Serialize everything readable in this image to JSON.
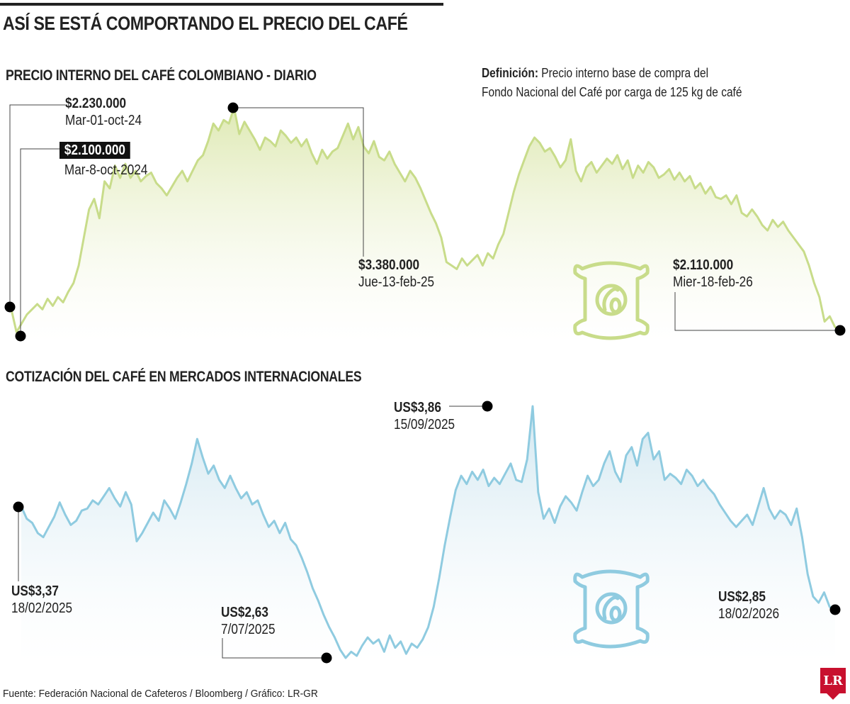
{
  "title": "ASÍ SE ESTÁ COMPORTANDO EL PRECIO DEL CAFÉ",
  "definition": {
    "label": "Definición:",
    "line1": "Precio interno base de compra del",
    "line2": "Fondo Nacional del Café por carga de 125 kg de café"
  },
  "source": "Fuente: Federación Nacional de Cafeteros / Bloomberg / Gráfico: LR-GR",
  "logo": "LR",
  "colors": {
    "domestic_line": "#c8dc8a",
    "international_line": "#8fcbe0",
    "logo": "#c8102e"
  },
  "icons": [
    "coffee-sack-icon"
  ],
  "chart_data": [
    {
      "type": "area",
      "title": "PRECIO INTERNO DEL CAFÉ COLOMBIANO - DIARIO",
      "annotations": [
        {
          "value": "$2.230.000",
          "date": "Mar-01-oct-24"
        },
        {
          "value": "$2.100.000",
          "date": "Mar-8-oct-2024"
        },
        {
          "value": "$3.380.000",
          "date": "Jue-13-feb-25"
        },
        {
          "value": "$2.110.000",
          "date": "Mier-18-feb-26"
        }
      ],
      "y": [
        2230000,
        2100000,
        2150000,
        2200000,
        2230000,
        2260000,
        2230000,
        2290000,
        2250000,
        2300000,
        2270000,
        2330000,
        2380000,
        2480000,
        2640000,
        2800000,
        2860000,
        2750000,
        2960000,
        2920000,
        3050000,
        2980000,
        3060000,
        2980000,
        3020000,
        2960000,
        2990000,
        3010000,
        2950000,
        2920000,
        2880000,
        2930000,
        2980000,
        3020000,
        2960000,
        3020000,
        3080000,
        3110000,
        3190000,
        3290000,
        3250000,
        3310000,
        3290000,
        3380000,
        3230000,
        3300000,
        3250000,
        3200000,
        3140000,
        3210000,
        3190000,
        3160000,
        3250000,
        3220000,
        3180000,
        3210000,
        3160000,
        3200000,
        3120000,
        3060000,
        3140000,
        3090000,
        3130000,
        3150000,
        3220000,
        3290000,
        3200000,
        3270000,
        3160000,
        3120000,
        3190000,
        3100000,
        3080000,
        3130000,
        3060000,
        3010000,
        2960000,
        3020000,
        2980000,
        2920000,
        2850000,
        2780000,
        2720000,
        2640000,
        2500000,
        2480000,
        2460000,
        2520000,
        2480000,
        2510000,
        2540000,
        2480000,
        2550000,
        2520000,
        2600000,
        2660000,
        2780000,
        2900000,
        3000000,
        3080000,
        3160000,
        3210000,
        3180000,
        3130000,
        3150000,
        3100000,
        3040000,
        3080000,
        3200000,
        3020000,
        2960000,
        3040000,
        3070000,
        3010000,
        3050000,
        3090000,
        3060000,
        3110000,
        3030000,
        3080000,
        2980000,
        3050000,
        3010000,
        3070000,
        3040000,
        2980000,
        3000000,
        3030000,
        2970000,
        3010000,
        2960000,
        2990000,
        2920000,
        2950000,
        2890000,
        2930000,
        2870000,
        2860000,
        2880000,
        2830000,
        2880000,
        2780000,
        2760000,
        2800000,
        2760000,
        2710000,
        2680000,
        2740000,
        2700000,
        2730000,
        2680000,
        2640000,
        2600000,
        2560000,
        2480000,
        2380000,
        2300000,
        2160000,
        2190000,
        2130000,
        2110000
      ]
    },
    {
      "type": "area",
      "title": "COTIZACIÓN DEL CAFÉ EN MERCADOS INTERNACIONALES",
      "annotations": [
        {
          "value": "US$3,37",
          "date": "18/02/2025"
        },
        {
          "value": "US$2,63",
          "date": "7/07/2025"
        },
        {
          "value": "US$3,86",
          "date": "15/09/2025"
        },
        {
          "value": "US$2,85",
          "date": "18/02/2026"
        }
      ],
      "y": [
        3.37,
        3.31,
        3.29,
        3.24,
        3.22,
        3.27,
        3.32,
        3.39,
        3.33,
        3.28,
        3.3,
        3.35,
        3.36,
        3.4,
        3.38,
        3.42,
        3.46,
        3.41,
        3.37,
        3.44,
        3.38,
        3.2,
        3.24,
        3.29,
        3.34,
        3.3,
        3.4,
        3.36,
        3.31,
        3.39,
        3.48,
        3.58,
        3.7,
        3.61,
        3.53,
        3.57,
        3.5,
        3.46,
        3.52,
        3.46,
        3.41,
        3.44,
        3.38,
        3.4,
        3.33,
        3.27,
        3.3,
        3.24,
        3.29,
        3.21,
        3.18,
        3.12,
        3.05,
        2.97,
        2.91,
        2.84,
        2.78,
        2.73,
        2.67,
        2.63,
        2.66,
        2.64,
        2.69,
        2.73,
        2.7,
        2.72,
        2.66,
        2.74,
        2.68,
        2.71,
        2.65,
        2.7,
        2.68,
        2.72,
        2.78,
        2.88,
        3.02,
        3.18,
        3.32,
        3.45,
        3.52,
        3.48,
        3.54,
        3.5,
        3.55,
        3.47,
        3.51,
        3.48,
        3.53,
        3.58,
        3.5,
        3.49,
        3.6,
        3.86,
        3.44,
        3.31,
        3.36,
        3.29,
        3.37,
        3.42,
        3.39,
        3.35,
        3.44,
        3.52,
        3.47,
        3.5,
        3.58,
        3.64,
        3.54,
        3.49,
        3.62,
        3.66,
        3.57,
        3.7,
        3.73,
        3.6,
        3.64,
        3.5,
        3.53,
        3.51,
        3.48,
        3.55,
        3.52,
        3.47,
        3.5,
        3.46,
        3.43,
        3.38,
        3.34,
        3.3,
        3.27,
        3.3,
        3.33,
        3.28,
        3.37,
        3.46,
        3.36,
        3.31,
        3.35,
        3.33,
        3.28,
        3.36,
        3.22,
        3.04,
        2.93,
        2.9,
        2.95,
        2.88,
        2.85
      ]
    }
  ]
}
